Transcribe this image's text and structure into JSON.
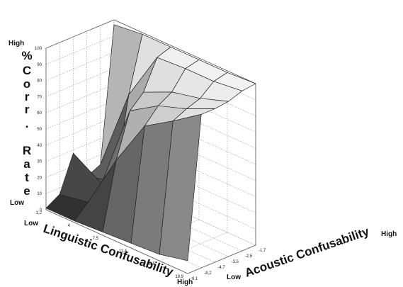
{
  "chart_data": {
    "type": "surface",
    "title": "",
    "xlabel": "Acoustic Confusability",
    "ylabel": "Linguistic Confusability",
    "zlabel": "% Corr. Rate",
    "z_label_lines": [
      "%",
      "C",
      "o",
      "r",
      "r",
      ".",
      "",
      "R",
      "a",
      "t",
      "e"
    ],
    "x_ticks": [
      "-9,1",
      "-8,2",
      "-4,7",
      "-3,5",
      "-2,5",
      "-1,7"
    ],
    "y_ticks": [
      "1,2",
      "4",
      "7,5",
      "11,4",
      "15,5",
      "19,9"
    ],
    "z_ticks": [
      "0",
      "10",
      "20",
      "30",
      "40",
      "50",
      "60",
      "70",
      "80",
      "90",
      "100"
    ],
    "zlim": [
      0,
      100
    ],
    "grid": true,
    "x_end_labels": {
      "low": "Low",
      "high": "High"
    },
    "y_end_labels": {
      "low": "Low",
      "high": "High"
    },
    "z_end_labels": {
      "low": "Low",
      "high": "High"
    },
    "z": [
      [
        1,
        6,
        28,
        10,
        14,
        97
      ],
      [
        1,
        9,
        17,
        15,
        65,
        99
      ],
      [
        2,
        43,
        70,
        78,
        96,
        99
      ],
      [
        3,
        72,
        81,
        86,
        97,
        99
      ],
      [
        4,
        83,
        87,
        90,
        97,
        99
      ],
      [
        8,
        95,
        95,
        96,
        99,
        100
      ]
    ]
  }
}
